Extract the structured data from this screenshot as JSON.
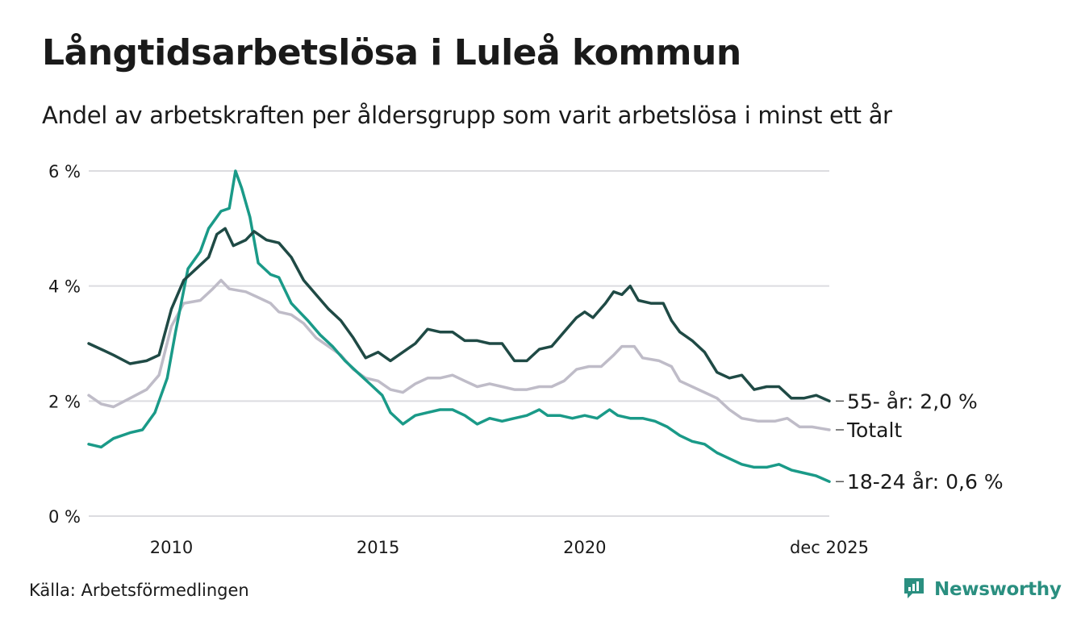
{
  "header": {
    "title": "Långtidsarbetslösa i Luleå kommun",
    "subtitle": "Andel av arbetskraften per åldersgrupp som varit arbetslösa i minst ett år"
  },
  "footer": {
    "source": "Källa: Arbetsförmedlingen",
    "brand": "Newsworthy",
    "brand_icon": "newsworthy-logo-icon"
  },
  "chart_data": {
    "type": "line",
    "title": "Långtidsarbetslösa i Luleå kommun",
    "xlabel": "",
    "ylabel": "",
    "xlim": [
      2008.0,
      2025.917
    ],
    "ylim": [
      0,
      6
    ],
    "y_ticks": [
      0,
      2,
      4,
      6
    ],
    "y_tick_labels": [
      "0 %",
      "2 %",
      "4 %",
      "6 %"
    ],
    "x_ticks": [
      2010,
      2015,
      2020,
      2025.917
    ],
    "x_tick_labels": [
      "2010",
      "2015",
      "2020",
      "dec 2025"
    ],
    "grid": true,
    "series": [
      {
        "name": "55- år",
        "label": "55- år: 2,0 %",
        "color": "#1f4a45",
        "points": [
          [
            2008.0,
            3.0
          ],
          [
            2008.3,
            2.9
          ],
          [
            2008.6,
            2.8
          ],
          [
            2009.0,
            2.65
          ],
          [
            2009.4,
            2.7
          ],
          [
            2009.7,
            2.8
          ],
          [
            2010.0,
            3.6
          ],
          [
            2010.3,
            4.1
          ],
          [
            2010.6,
            4.3
          ],
          [
            2010.9,
            4.5
          ],
          [
            2011.1,
            4.9
          ],
          [
            2011.3,
            5.0
          ],
          [
            2011.5,
            4.7
          ],
          [
            2011.8,
            4.8
          ],
          [
            2012.0,
            4.95
          ],
          [
            2012.3,
            4.8
          ],
          [
            2012.6,
            4.75
          ],
          [
            2012.9,
            4.5
          ],
          [
            2013.2,
            4.1
          ],
          [
            2013.5,
            3.85
          ],
          [
            2013.8,
            3.6
          ],
          [
            2014.1,
            3.4
          ],
          [
            2014.4,
            3.1
          ],
          [
            2014.7,
            2.75
          ],
          [
            2015.0,
            2.85
          ],
          [
            2015.3,
            2.7
          ],
          [
            2015.6,
            2.85
          ],
          [
            2015.9,
            3.0
          ],
          [
            2016.2,
            3.25
          ],
          [
            2016.5,
            3.2
          ],
          [
            2016.8,
            3.2
          ],
          [
            2017.1,
            3.05
          ],
          [
            2017.4,
            3.05
          ],
          [
            2017.7,
            3.0
          ],
          [
            2018.0,
            3.0
          ],
          [
            2018.3,
            2.7
          ],
          [
            2018.6,
            2.7
          ],
          [
            2018.9,
            2.9
          ],
          [
            2019.2,
            2.95
          ],
          [
            2019.5,
            3.2
          ],
          [
            2019.8,
            3.45
          ],
          [
            2020.0,
            3.55
          ],
          [
            2020.2,
            3.45
          ],
          [
            2020.5,
            3.7
          ],
          [
            2020.7,
            3.9
          ],
          [
            2020.9,
            3.85
          ],
          [
            2021.1,
            4.0
          ],
          [
            2021.3,
            3.75
          ],
          [
            2021.6,
            3.7
          ],
          [
            2021.9,
            3.7
          ],
          [
            2022.1,
            3.4
          ],
          [
            2022.3,
            3.2
          ],
          [
            2022.6,
            3.05
          ],
          [
            2022.9,
            2.85
          ],
          [
            2023.2,
            2.5
          ],
          [
            2023.5,
            2.4
          ],
          [
            2023.8,
            2.45
          ],
          [
            2024.1,
            2.2
          ],
          [
            2024.4,
            2.25
          ],
          [
            2024.7,
            2.25
          ],
          [
            2025.0,
            2.05
          ],
          [
            2025.3,
            2.05
          ],
          [
            2025.6,
            2.1
          ],
          [
            2025.917,
            2.0
          ]
        ]
      },
      {
        "name": "Totalt",
        "label": "Totalt",
        "color": "#bfbcc8",
        "points": [
          [
            2008.0,
            2.1
          ],
          [
            2008.3,
            1.95
          ],
          [
            2008.6,
            1.9
          ],
          [
            2009.0,
            2.05
          ],
          [
            2009.4,
            2.2
          ],
          [
            2009.7,
            2.45
          ],
          [
            2010.0,
            3.3
          ],
          [
            2010.3,
            3.7
          ],
          [
            2010.7,
            3.75
          ],
          [
            2011.0,
            3.95
          ],
          [
            2011.2,
            4.1
          ],
          [
            2011.4,
            3.95
          ],
          [
            2011.8,
            3.9
          ],
          [
            2012.1,
            3.8
          ],
          [
            2012.4,
            3.7
          ],
          [
            2012.6,
            3.55
          ],
          [
            2012.9,
            3.5
          ],
          [
            2013.2,
            3.35
          ],
          [
            2013.5,
            3.1
          ],
          [
            2013.8,
            2.95
          ],
          [
            2014.1,
            2.8
          ],
          [
            2014.4,
            2.55
          ],
          [
            2014.7,
            2.4
          ],
          [
            2015.0,
            2.35
          ],
          [
            2015.3,
            2.2
          ],
          [
            2015.6,
            2.15
          ],
          [
            2015.9,
            2.3
          ],
          [
            2016.2,
            2.4
          ],
          [
            2016.5,
            2.4
          ],
          [
            2016.8,
            2.45
          ],
          [
            2017.1,
            2.35
          ],
          [
            2017.4,
            2.25
          ],
          [
            2017.7,
            2.3
          ],
          [
            2018.0,
            2.25
          ],
          [
            2018.3,
            2.2
          ],
          [
            2018.6,
            2.2
          ],
          [
            2018.9,
            2.25
          ],
          [
            2019.2,
            2.25
          ],
          [
            2019.5,
            2.35
          ],
          [
            2019.8,
            2.55
          ],
          [
            2020.1,
            2.6
          ],
          [
            2020.4,
            2.6
          ],
          [
            2020.7,
            2.8
          ],
          [
            2020.9,
            2.95
          ],
          [
            2021.2,
            2.95
          ],
          [
            2021.4,
            2.75
          ],
          [
            2021.8,
            2.7
          ],
          [
            2022.1,
            2.6
          ],
          [
            2022.3,
            2.35
          ],
          [
            2022.6,
            2.25
          ],
          [
            2022.9,
            2.15
          ],
          [
            2023.2,
            2.05
          ],
          [
            2023.5,
            1.85
          ],
          [
            2023.8,
            1.7
          ],
          [
            2024.2,
            1.65
          ],
          [
            2024.6,
            1.65
          ],
          [
            2024.9,
            1.7
          ],
          [
            2025.2,
            1.55
          ],
          [
            2025.5,
            1.55
          ],
          [
            2025.917,
            1.5
          ]
        ]
      },
      {
        "name": "18-24 år",
        "label": "18-24 år: 0,6 %",
        "color": "#1a9a88",
        "points": [
          [
            2008.0,
            1.25
          ],
          [
            2008.3,
            1.2
          ],
          [
            2008.6,
            1.35
          ],
          [
            2009.0,
            1.45
          ],
          [
            2009.3,
            1.5
          ],
          [
            2009.6,
            1.8
          ],
          [
            2009.9,
            2.4
          ],
          [
            2010.1,
            3.2
          ],
          [
            2010.4,
            4.3
          ],
          [
            2010.7,
            4.6
          ],
          [
            2010.9,
            5.0
          ],
          [
            2011.2,
            5.3
          ],
          [
            2011.4,
            5.35
          ],
          [
            2011.55,
            6.0
          ],
          [
            2011.7,
            5.7
          ],
          [
            2011.9,
            5.2
          ],
          [
            2012.1,
            4.4
          ],
          [
            2012.4,
            4.2
          ],
          [
            2012.6,
            4.15
          ],
          [
            2012.9,
            3.7
          ],
          [
            2013.1,
            3.55
          ],
          [
            2013.3,
            3.4
          ],
          [
            2013.6,
            3.15
          ],
          [
            2013.9,
            2.95
          ],
          [
            2014.2,
            2.7
          ],
          [
            2014.5,
            2.5
          ],
          [
            2014.8,
            2.3
          ],
          [
            2015.1,
            2.1
          ],
          [
            2015.3,
            1.8
          ],
          [
            2015.6,
            1.6
          ],
          [
            2015.9,
            1.75
          ],
          [
            2016.2,
            1.8
          ],
          [
            2016.5,
            1.85
          ],
          [
            2016.8,
            1.85
          ],
          [
            2017.1,
            1.75
          ],
          [
            2017.4,
            1.6
          ],
          [
            2017.7,
            1.7
          ],
          [
            2018.0,
            1.65
          ],
          [
            2018.3,
            1.7
          ],
          [
            2018.6,
            1.75
          ],
          [
            2018.9,
            1.85
          ],
          [
            2019.1,
            1.75
          ],
          [
            2019.4,
            1.75
          ],
          [
            2019.7,
            1.7
          ],
          [
            2020.0,
            1.75
          ],
          [
            2020.3,
            1.7
          ],
          [
            2020.6,
            1.85
          ],
          [
            2020.8,
            1.75
          ],
          [
            2021.1,
            1.7
          ],
          [
            2021.4,
            1.7
          ],
          [
            2021.7,
            1.65
          ],
          [
            2022.0,
            1.55
          ],
          [
            2022.3,
            1.4
          ],
          [
            2022.6,
            1.3
          ],
          [
            2022.9,
            1.25
          ],
          [
            2023.2,
            1.1
          ],
          [
            2023.5,
            1.0
          ],
          [
            2023.8,
            0.9
          ],
          [
            2024.1,
            0.85
          ],
          [
            2024.4,
            0.85
          ],
          [
            2024.7,
            0.9
          ],
          [
            2025.0,
            0.8
          ],
          [
            2025.3,
            0.75
          ],
          [
            2025.6,
            0.7
          ],
          [
            2025.917,
            0.6
          ]
        ]
      }
    ]
  }
}
